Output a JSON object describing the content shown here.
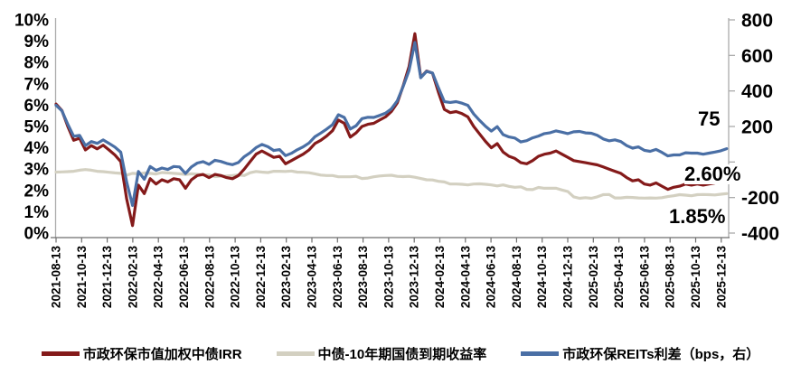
{
  "chart_data": {
    "type": "line",
    "title": "",
    "grid": false,
    "legend_position": "bottom",
    "x_tick_labels": [
      "2021-08-13",
      "2021-10-13",
      "2021-12-13",
      "2022-02-13",
      "2022-04-13",
      "2022-06-13",
      "2022-08-13",
      "2022-10-13",
      "2022-12-13",
      "2023-02-13",
      "2023-04-13",
      "2023-06-13",
      "2023-08-13",
      "2023-10-13",
      "2023-12-13",
      "2024-02-13",
      "2024-04-13",
      "2024-06-13",
      "2024-08-13",
      "2024-10-13",
      "2024-12-13",
      "2025-02-13",
      "2025-04-13",
      "2025-06-13",
      "2025-08-13",
      "2025-10-13",
      "2025-12-13"
    ],
    "left_axis": {
      "min": 0,
      "max": 10,
      "step": 1,
      "unit": "%",
      "ticks": [
        "10%",
        "9%",
        "8%",
        "7%",
        "6%",
        "5%",
        "4%",
        "3%",
        "2%",
        "1%",
        "0%"
      ]
    },
    "right_axis": {
      "min": -400,
      "max": 800,
      "step": 200,
      "unit": "bps",
      "ticks": [
        "800",
        "600",
        "400",
        "200",
        "0",
        "-200",
        "-400"
      ]
    },
    "sample_interval_days": 14,
    "series": [
      {
        "name": "市政环保市值加权中债IRR",
        "color": "#841A1A",
        "axis": "left",
        "unit": "%",
        "values": [
          6.05,
          5.75,
          5.0,
          4.35,
          4.45,
          3.9,
          4.1,
          3.95,
          4.12,
          3.9,
          3.66,
          3.35,
          1.6,
          0.35,
          2.25,
          1.85,
          2.55,
          2.3,
          2.5,
          2.4,
          2.55,
          2.5,
          2.1,
          2.5,
          2.7,
          2.75,
          2.6,
          2.75,
          2.7,
          2.6,
          2.55,
          2.7,
          3.0,
          3.35,
          3.7,
          3.85,
          3.7,
          3.55,
          3.6,
          3.25,
          3.4,
          3.55,
          3.7,
          3.9,
          4.2,
          4.35,
          4.55,
          4.8,
          5.3,
          5.15,
          4.5,
          4.7,
          5.0,
          5.1,
          5.15,
          5.3,
          5.45,
          5.7,
          6.1,
          6.9,
          7.8,
          9.35,
          7.3,
          7.6,
          7.5,
          6.6,
          5.8,
          5.65,
          5.7,
          5.6,
          5.45,
          5.0,
          4.65,
          4.3,
          4.0,
          4.2,
          3.8,
          3.6,
          3.5,
          3.3,
          3.25,
          3.4,
          3.6,
          3.7,
          3.75,
          3.85,
          3.7,
          3.55,
          3.4,
          3.35,
          3.3,
          3.25,
          3.2,
          3.1,
          3.0,
          2.9,
          2.8,
          2.6,
          2.45,
          2.5,
          2.3,
          2.25,
          2.35,
          2.2,
          2.05,
          2.15,
          2.2,
          2.3,
          2.25,
          2.3,
          2.25,
          2.3,
          2.35,
          2.45,
          2.6
        ]
      },
      {
        "name": "中债-10年期国债到期收益率",
        "color": "#D3D0C1",
        "axis": "left",
        "unit": "%",
        "values": [
          2.86,
          2.87,
          2.88,
          2.9,
          2.95,
          2.98,
          2.95,
          2.9,
          2.88,
          2.85,
          2.82,
          2.8,
          2.72,
          2.8,
          2.78,
          2.82,
          2.8,
          2.77,
          2.84,
          2.82,
          2.8,
          2.78,
          2.75,
          2.78,
          2.76,
          2.73,
          2.73,
          2.65,
          2.67,
          2.68,
          2.7,
          2.73,
          2.7,
          2.83,
          2.89,
          2.86,
          2.84,
          2.9,
          2.9,
          2.89,
          2.91,
          2.86,
          2.85,
          2.83,
          2.78,
          2.72,
          2.7,
          2.7,
          2.64,
          2.64,
          2.64,
          2.66,
          2.56,
          2.58,
          2.64,
          2.68,
          2.7,
          2.71,
          2.66,
          2.65,
          2.66,
          2.62,
          2.56,
          2.5,
          2.49,
          2.43,
          2.4,
          2.3,
          2.3,
          2.29,
          2.26,
          2.3,
          2.31,
          2.29,
          2.26,
          2.21,
          2.26,
          2.19,
          2.15,
          2.17,
          2.05,
          2.04,
          2.14,
          2.1,
          2.1,
          2.1,
          2.02,
          1.95,
          1.7,
          1.63,
          1.66,
          1.63,
          1.7,
          1.8,
          1.81,
          1.65,
          1.65,
          1.68,
          1.67,
          1.65,
          1.64,
          1.65,
          1.64,
          1.66,
          1.71,
          1.75,
          1.8,
          1.78,
          1.75,
          1.8,
          1.81,
          1.8,
          1.79,
          1.82,
          1.85
        ]
      },
      {
        "name": "市政环保REITs利差（bps，右）",
        "color": "#4A6FA5",
        "axis": "right",
        "unit": "bps",
        "values": [
          319,
          288,
          212,
          145,
          150,
          92,
          115,
          105,
          124,
          105,
          84,
          55,
          -112,
          -245,
          -53,
          -97,
          -25,
          -47,
          -34,
          -42,
          -25,
          -28,
          -65,
          -28,
          -6,
          2,
          -13,
          10,
          3,
          -8,
          -15,
          -3,
          30,
          52,
          81,
          99,
          86,
          65,
          70,
          36,
          49,
          69,
          85,
          107,
          142,
          163,
          185,
          210,
          266,
          251,
          186,
          204,
          244,
          252,
          251,
          262,
          275,
          299,
          344,
          425,
          514,
          673,
          474,
          510,
          501,
          417,
          340,
          335,
          340,
          331,
          319,
          270,
          234,
          201,
          174,
          199,
          154,
          141,
          135,
          113,
          120,
          136,
          146,
          160,
          165,
          175,
          168,
          160,
          170,
          172,
          164,
          162,
          150,
          130,
          119,
          125,
          115,
          92,
          78,
          85,
          66,
          60,
          71,
          54,
          34,
          40,
          40,
          52,
          50,
          50,
          44,
          50,
          56,
          63,
          75
        ]
      }
    ],
    "annotations": [
      {
        "text": "75",
        "series": "市政环保REITs利差（bps，右）",
        "value": 75
      },
      {
        "text": "2.60%",
        "series": "市政环保市值加权中债IRR",
        "value": 2.6
      },
      {
        "text": "1.85%",
        "series": "中债-10年期国债到期收益率",
        "value": 1.85
      }
    ]
  }
}
